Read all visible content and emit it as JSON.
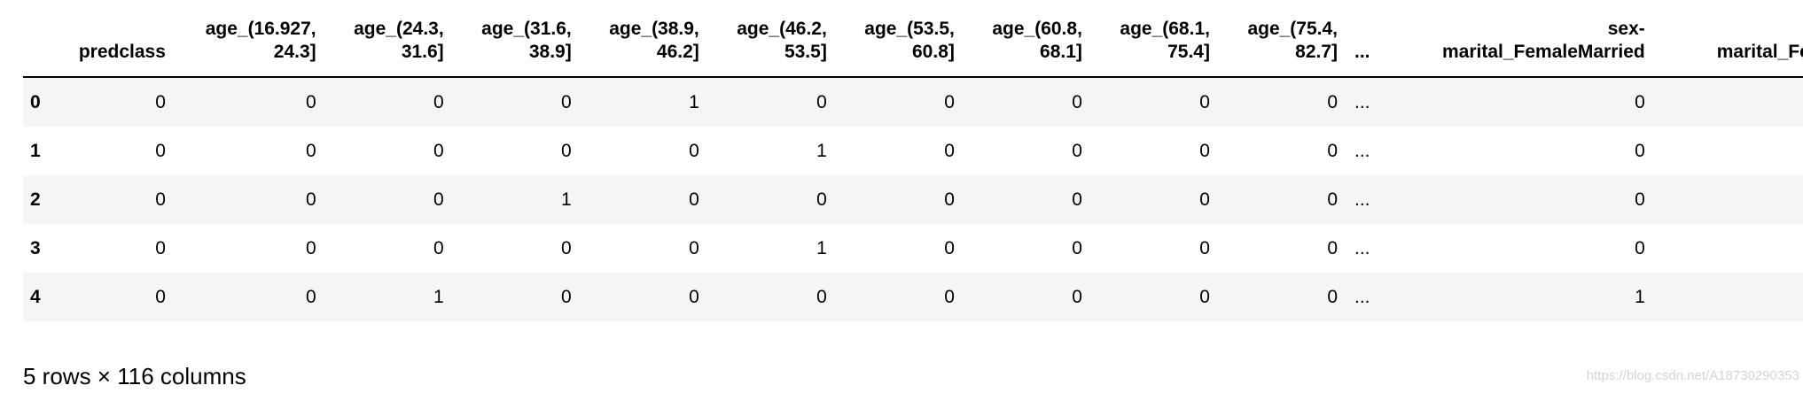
{
  "table": {
    "header": [
      "",
      "predclass",
      "age_(16.927, 24.3]",
      "age_(24.3, 31.6]",
      "age_(31.6, 38.9]",
      "age_(38.9, 46.2]",
      "age_(46.2, 53.5]",
      "age_(53.5, 60.8]",
      "age_(60.8, 68.1]",
      "age_(68.1, 75.4]",
      "age_(75.4, 82.7]",
      "...",
      "sex-marital_FemaleMarried",
      "marital_Female M"
    ],
    "rows": [
      [
        "0",
        "0",
        "0",
        "0",
        "0",
        "1",
        "0",
        "0",
        "0",
        "0",
        "0",
        "...",
        "0"
      ],
      [
        "1",
        "0",
        "0",
        "0",
        "0",
        "0",
        "1",
        "0",
        "0",
        "0",
        "0",
        "...",
        "0"
      ],
      [
        "2",
        "0",
        "0",
        "0",
        "1",
        "0",
        "0",
        "0",
        "0",
        "0",
        "0",
        "...",
        "0"
      ],
      [
        "3",
        "0",
        "0",
        "0",
        "0",
        "0",
        "1",
        "0",
        "0",
        "0",
        "0",
        "...",
        "0"
      ],
      [
        "4",
        "0",
        "0",
        "1",
        "0",
        "0",
        "0",
        "0",
        "0",
        "0",
        "0",
        "...",
        "1"
      ]
    ]
  },
  "footer": "5 rows × 116 columns",
  "watermark": "https://blog.csdn.net/A18730290353"
}
